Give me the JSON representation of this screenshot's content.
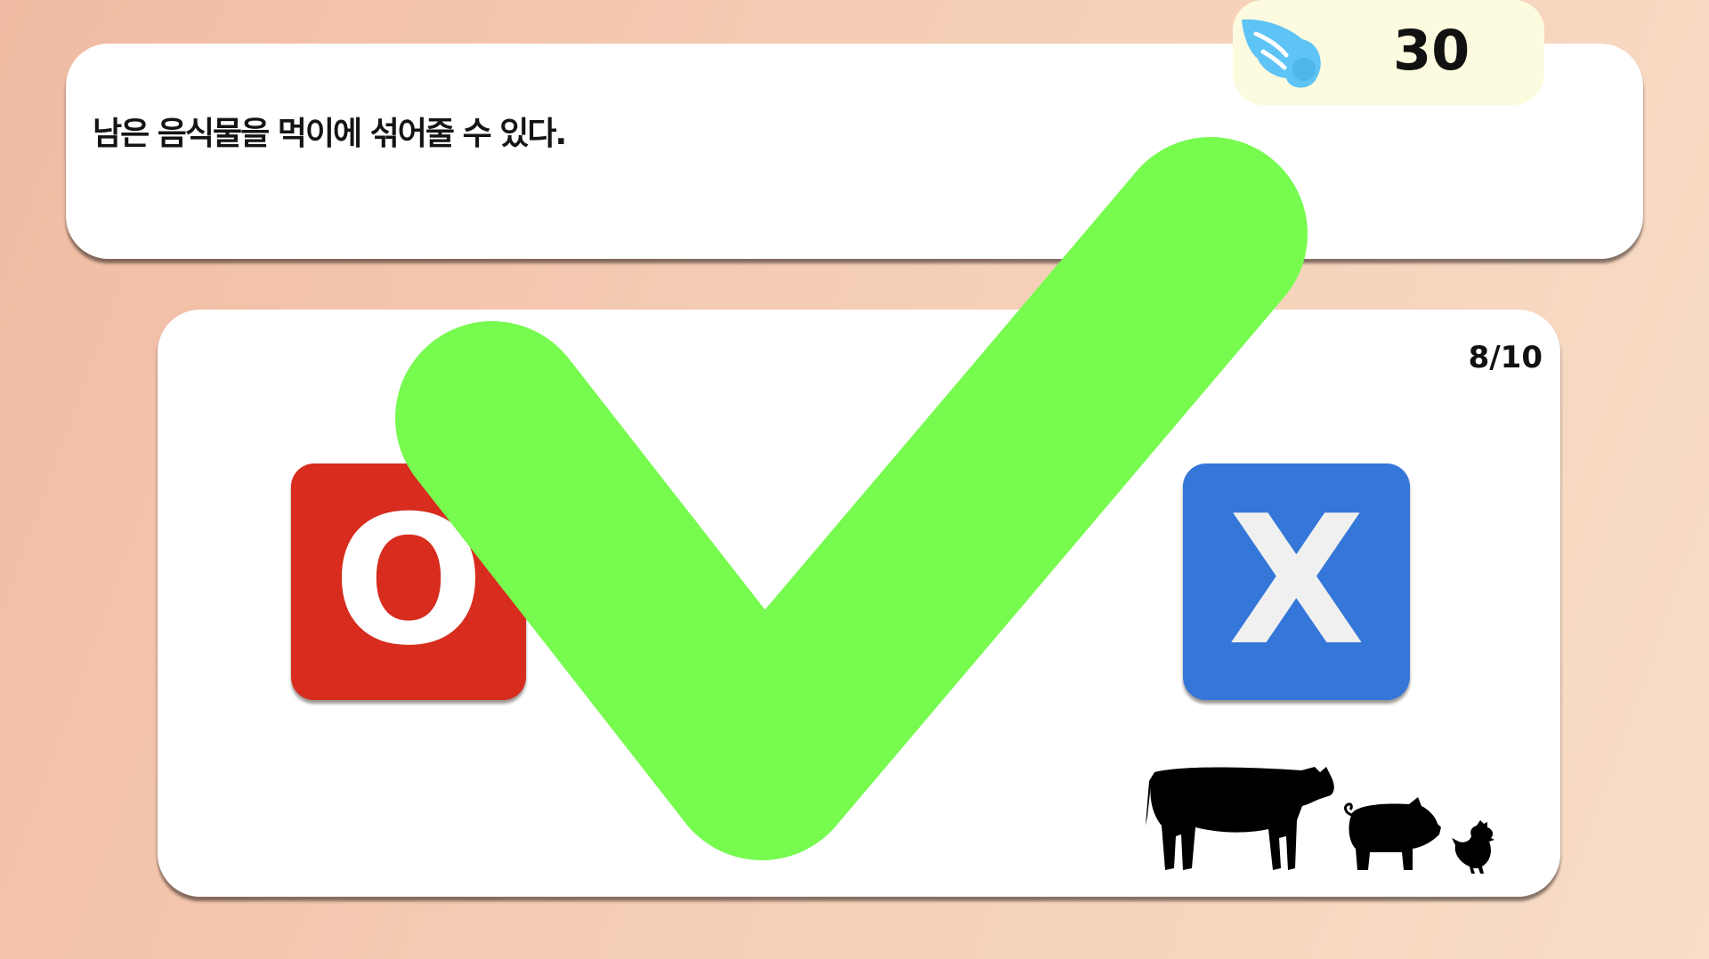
{
  "question": {
    "text": "남은 음식물을 먹이에 섞어줄 수 있다."
  },
  "score": {
    "value": "30",
    "icon": "wing-icon",
    "icon_color": "#5ec3f5"
  },
  "progress": {
    "label": "8/10",
    "current": 8,
    "total": 10
  },
  "answers": {
    "o_label": "O",
    "x_label": "X",
    "o_color": "#d72c1e",
    "x_color": "#3477d9"
  },
  "feedback": {
    "icon": "checkmark-icon",
    "result": "correct",
    "color": "#76fb4e"
  },
  "decoration": {
    "icons": [
      "cow-icon",
      "pig-icon",
      "chicken-icon"
    ]
  }
}
